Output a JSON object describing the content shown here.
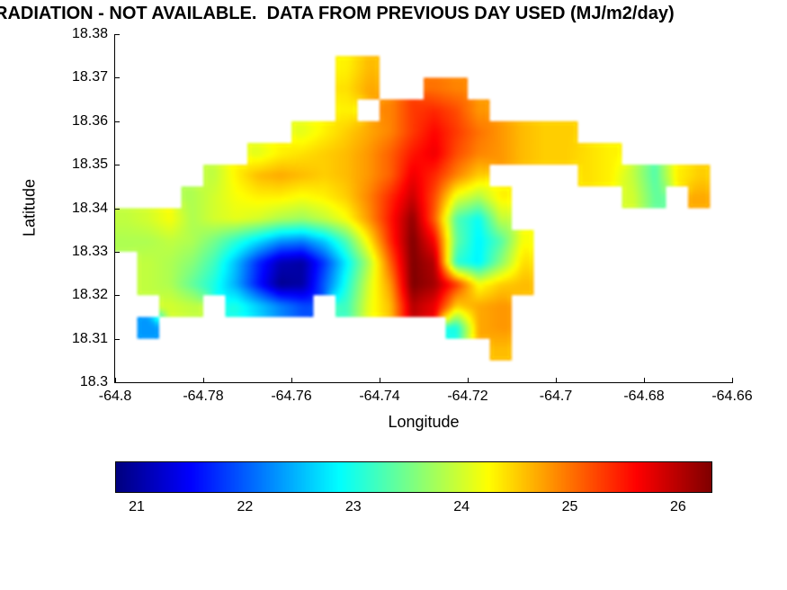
{
  "chart_data": {
    "type": "heatmap",
    "title": "RADIATION - NOT AVAILABLE.  DATA FROM PREVIOUS DAY USED (MJ/m2/day)",
    "xlabel": "Longitude",
    "ylabel": "Latitude",
    "x_ticks": [
      "-64.8",
      "-64.78",
      "-64.76",
      "-64.74",
      "-64.72",
      "-64.7",
      "-64.68",
      "-64.66"
    ],
    "y_ticks": [
      "18.38",
      "18.37",
      "18.36",
      "18.35",
      "18.34",
      "18.33",
      "18.32",
      "18.31",
      "18.3"
    ],
    "x_range": [
      -64.8,
      -64.66
    ],
    "y_range": [
      18.3,
      18.38
    ],
    "grid_on": false,
    "colormap": "jet",
    "value_range": [
      20.8,
      26.3
    ],
    "colorbar": {
      "orientation": "horizontal",
      "tick_values": [
        21,
        22,
        23,
        24,
        25,
        26
      ],
      "tick_labels": [
        "21",
        "22",
        "23",
        "24",
        "25",
        "26"
      ]
    },
    "grid": {
      "lon_start": -64.7975,
      "lon_step": 0.005,
      "lat_start": 18.3775,
      "lat_step": -0.005,
      "cols": 28,
      "rows": 16,
      "values": [
        [
          null,
          null,
          null,
          null,
          null,
          null,
          null,
          null,
          null,
          null,
          null,
          null,
          null,
          null,
          null,
          null,
          null,
          null,
          null,
          null,
          null,
          null,
          null,
          null,
          null,
          null,
          null,
          null
        ],
        [
          null,
          null,
          null,
          null,
          null,
          null,
          null,
          null,
          null,
          null,
          24.3,
          24.6,
          null,
          null,
          null,
          null,
          null,
          null,
          null,
          null,
          null,
          null,
          null,
          null,
          null,
          null,
          null,
          null
        ],
        [
          null,
          null,
          null,
          null,
          null,
          null,
          null,
          null,
          null,
          null,
          24.4,
          24.7,
          null,
          null,
          25.0,
          24.9,
          null,
          null,
          null,
          null,
          null,
          null,
          null,
          null,
          null,
          null,
          null,
          null
        ],
        [
          null,
          null,
          null,
          null,
          null,
          null,
          null,
          null,
          null,
          null,
          24.3,
          null,
          24.9,
          25.3,
          25.4,
          25.2,
          24.8,
          null,
          null,
          null,
          null,
          null,
          null,
          null,
          null,
          null,
          null,
          null
        ],
        [
          null,
          null,
          null,
          null,
          null,
          null,
          null,
          null,
          24.1,
          24.3,
          24.5,
          24.7,
          24.9,
          25.3,
          25.6,
          25.3,
          25.0,
          24.8,
          24.6,
          24.5,
          24.5,
          null,
          null,
          null,
          null,
          null,
          null,
          null
        ],
        [
          null,
          null,
          null,
          null,
          null,
          null,
          24.1,
          24.3,
          24.4,
          24.5,
          24.6,
          24.8,
          25.1,
          25.5,
          25.7,
          25.2,
          24.9,
          24.8,
          24.6,
          24.5,
          24.5,
          24.4,
          24.3,
          null,
          null,
          null,
          null,
          null
        ],
        [
          null,
          null,
          null,
          null,
          23.9,
          24.3,
          24.6,
          24.7,
          24.6,
          24.5,
          24.6,
          24.8,
          25.1,
          25.7,
          25.4,
          24.9,
          24.5,
          null,
          null,
          null,
          null,
          24.4,
          24.3,
          23.9,
          23.3,
          24.3,
          24.5,
          null
        ],
        [
          null,
          null,
          null,
          23.8,
          24.0,
          24.2,
          24.3,
          24.3,
          24.2,
          24.3,
          24.5,
          24.9,
          25.4,
          25.9,
          25.2,
          24.1,
          23.8,
          24.3,
          null,
          null,
          null,
          null,
          null,
          24.0,
          23.4,
          null,
          24.7,
          null
        ],
        [
          23.9,
          24.0,
          24.2,
          23.8,
          24.0,
          24.1,
          24.0,
          23.8,
          23.7,
          23.9,
          24.2,
          24.8,
          25.5,
          26.2,
          25.1,
          23.3,
          22.9,
          23.9,
          null,
          null,
          null,
          null,
          null,
          null,
          null,
          null,
          null,
          null
        ],
        [
          23.8,
          23.8,
          23.9,
          23.8,
          23.5,
          23.1,
          22.7,
          22.3,
          22.2,
          22.6,
          23.3,
          24.3,
          25.4,
          26.3,
          25.6,
          23.4,
          22.8,
          23.3,
          24.2,
          null,
          null,
          null,
          null,
          null,
          null,
          null,
          null,
          null
        ],
        [
          null,
          23.9,
          23.8,
          23.6,
          23.2,
          22.5,
          21.7,
          21.1,
          21.0,
          21.8,
          22.8,
          23.8,
          25.1,
          26.3,
          26.0,
          23.1,
          22.8,
          23.6,
          24.4,
          null,
          null,
          null,
          null,
          null,
          null,
          null,
          null,
          null
        ],
        [
          null,
          23.9,
          23.8,
          23.4,
          23.0,
          22.4,
          21.6,
          20.9,
          21.0,
          22.0,
          23.0,
          24.0,
          24.8,
          26.3,
          26.1,
          25.3,
          24.2,
          24.5,
          24.6,
          null,
          null,
          null,
          null,
          null,
          null,
          null,
          null,
          null
        ],
        [
          null,
          null,
          24.0,
          23.9,
          null,
          23.0,
          22.6,
          22.2,
          21.9,
          null,
          23.2,
          24.1,
          24.6,
          26.0,
          25.7,
          24.5,
          24.7,
          24.8,
          null,
          null,
          null,
          null,
          null,
          null,
          null,
          null,
          null,
          null
        ],
        [
          null,
          22.3,
          null,
          null,
          null,
          null,
          null,
          null,
          null,
          null,
          null,
          null,
          null,
          null,
          null,
          23.0,
          24.7,
          24.8,
          null,
          null,
          null,
          null,
          null,
          null,
          null,
          null,
          null,
          null
        ],
        [
          null,
          null,
          null,
          null,
          null,
          null,
          null,
          null,
          null,
          null,
          null,
          null,
          null,
          null,
          null,
          null,
          null,
          24.6,
          null,
          null,
          null,
          null,
          null,
          null,
          null,
          null,
          null,
          null
        ],
        [
          null,
          null,
          null,
          null,
          null,
          null,
          null,
          null,
          null,
          null,
          null,
          null,
          null,
          null,
          null,
          null,
          null,
          null,
          null,
          null,
          null,
          null,
          null,
          null,
          null,
          null,
          null,
          null
        ]
      ]
    }
  },
  "layout_hints": {
    "legend_position": "bottom-colorbar",
    "axes_box": "left-bottom"
  }
}
